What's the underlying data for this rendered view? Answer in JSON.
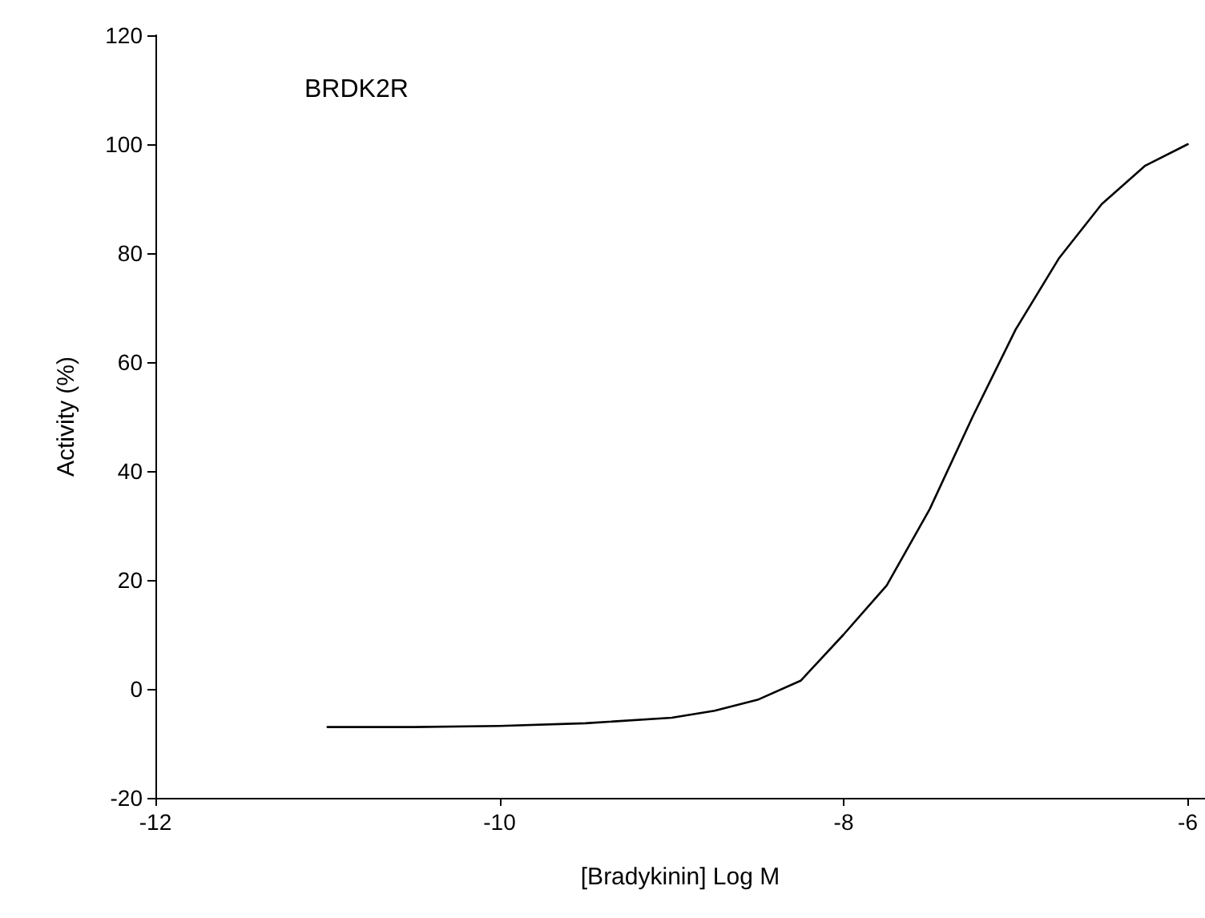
{
  "chart_data": {
    "type": "line",
    "xlabel": "[Bradykinin] Log M",
    "ylabel": "Activity (%)",
    "annotations": [
      "BRDK2R"
    ],
    "x": [
      -11,
      -10.5,
      -10,
      -9.5,
      -9,
      -8.75,
      -8.5,
      -8.25,
      -8,
      -7.75,
      -7.5,
      -7.25,
      -7,
      -6.75,
      -6.5,
      -6.25,
      -6
    ],
    "series": [
      {
        "color": "#000000",
        "values": [
          -7,
          -7,
          -6.8,
          -6.3,
          -5.3,
          -4,
          -2,
          1.5,
          10,
          19,
          33,
          50,
          66,
          79,
          89,
          96,
          100
        ]
      }
    ],
    "xlim": [
      -12,
      -5.9
    ],
    "xticks": [
      -12,
      -10,
      -8,
      -6
    ],
    "ylim": [
      -20,
      120
    ],
    "yticks": [
      -20,
      0,
      20,
      40,
      60,
      80,
      100,
      120
    ],
    "grid": false,
    "marker": "none",
    "line_style": "solid"
  }
}
